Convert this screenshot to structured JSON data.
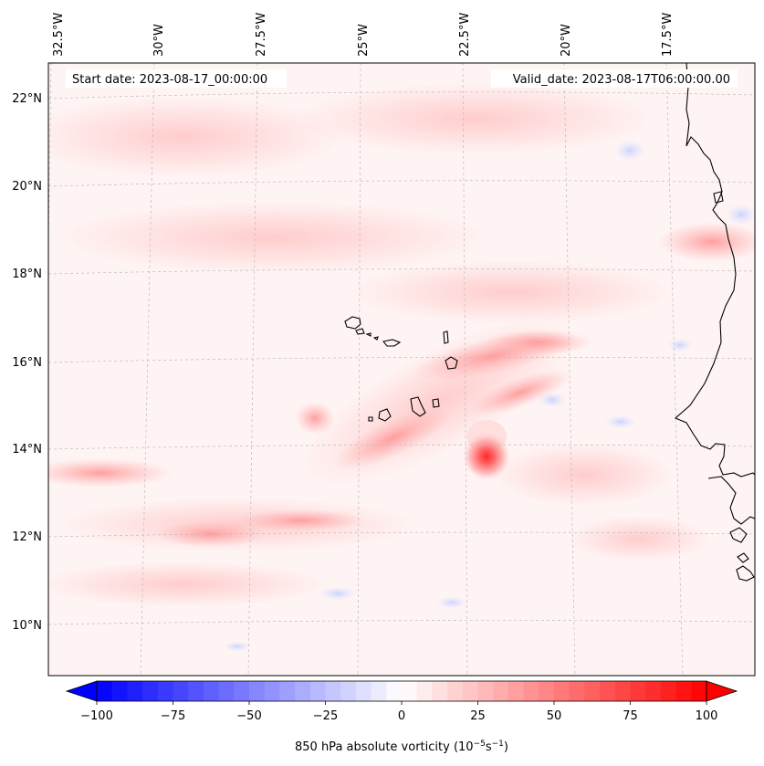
{
  "map": {
    "start_label": "Start date: 2023-08-17_00:00:00",
    "valid_label": "Valid_date: 2023-08-17T06:00:00.00",
    "lon_labels": [
      "32.5°W",
      "30°W",
      "27.5°W",
      "25°W",
      "22.5°W",
      "20°W",
      "17.5°W"
    ],
    "lat_labels": [
      "22°N",
      "20°N",
      "18°N",
      "16°N",
      "14°N",
      "12°N",
      "10°N"
    ],
    "extent": {
      "lon_west": -32.5,
      "lon_east": -15.5,
      "lat_south": 9,
      "lat_north": 22.7
    },
    "field": "850 hPa absolute vorticity",
    "vortex_max": {
      "lon": -21.8,
      "lat": 13.8
    },
    "islands": "Cape Verde",
    "coastline": "West Africa (Senegal / Gambia / Guinea-Bissau)"
  },
  "colorbar": {
    "label_main": "850 hPa absolute vorticity (10",
    "label_exp1": "−5",
    "label_mid": "s",
    "label_exp2": "−1",
    "label_end": ")",
    "tick_labels": [
      "−100",
      "−75",
      "−50",
      "−25",
      "0",
      "25",
      "50",
      "75",
      "100"
    ],
    "vmin": -100,
    "vmax": 100,
    "levels": 41,
    "cmap": "bwr",
    "extend": "both"
  },
  "colors": {
    "negative_max": "#0000ff",
    "zero": "#ffffff",
    "positive_max": "#ff0000",
    "coastline": "#000000",
    "gridline": "#bbbbbb"
  }
}
